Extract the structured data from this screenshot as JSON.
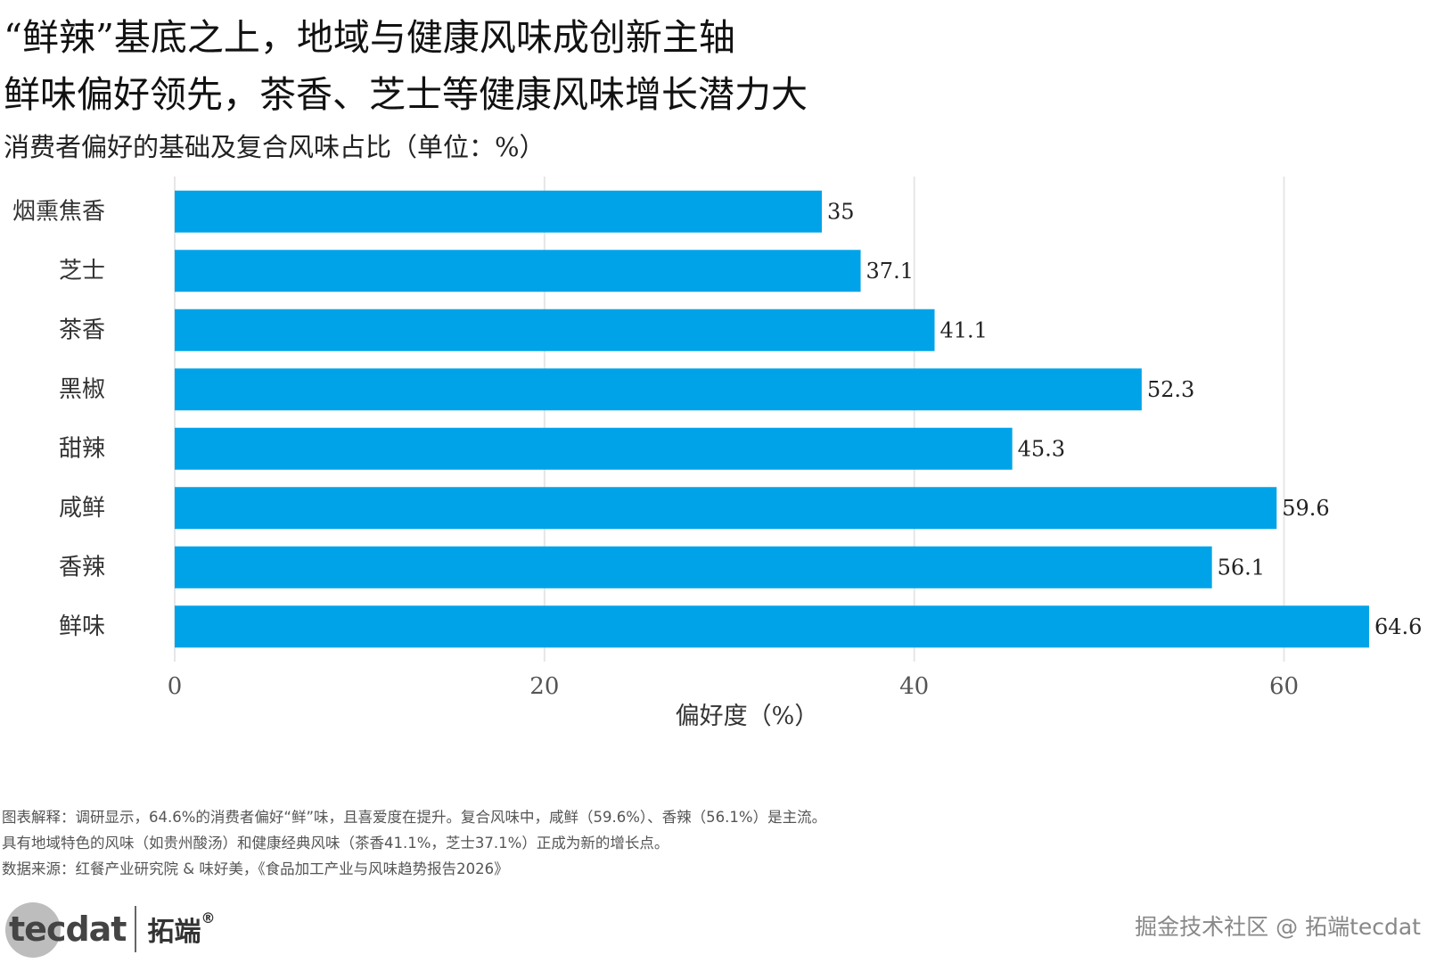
{
  "header": {
    "title_line1": "“鲜辣”基底之上，地域与健康风味成创新主轴",
    "title_line2": "鲜味偏好领先，茶香、芝士等健康风味增长潜力大",
    "subtitle": "消费者偏好的基础及复合风味占比（单位：%）"
  },
  "chart_data": {
    "type": "bar",
    "orientation": "horizontal",
    "categories": [
      "烟熏焦香",
      "芝士",
      "茶香",
      "黑椒",
      "甜辣",
      "咸鲜",
      "香辣",
      "鲜味"
    ],
    "values": [
      35,
      37.1,
      41.1,
      52.3,
      45.3,
      59.6,
      56.1,
      64.6
    ],
    "value_labels": [
      "35",
      "37.1",
      "41.1",
      "52.3",
      "45.3",
      "59.6",
      "56.1",
      "64.6"
    ],
    "xlabel": "偏好度（%）",
    "ylabel": "",
    "xlim": [
      0,
      66
    ],
    "xticks": [
      0,
      20,
      40,
      60
    ],
    "xtick_labels": [
      "0",
      "20",
      "40",
      "60"
    ],
    "grid": "vertical",
    "bar_color": "#00A3E8",
    "grid_color": "#e6e6e6"
  },
  "notes": {
    "line1": "图表解释：调研显示，64.6%的消费者偏好“鲜”味，且喜爱度在提升。复合风味中，咸鲜（59.6%）、香辣（56.1%）是主流。",
    "line2": "具有地域特色的风味（如贵州酸汤）和健康经典风味（茶香41.1%，芝士37.1%）正成为新的增长点。",
    "line3": "数据来源：红餐产业研究院 & 味好美，《食品加工产业与风味趋势报告2026》"
  },
  "logo": {
    "text": "tecdat",
    "cn": "拓端",
    "reg": "®"
  },
  "watermark": "掘金技术社区 @ 拓端tecdat"
}
